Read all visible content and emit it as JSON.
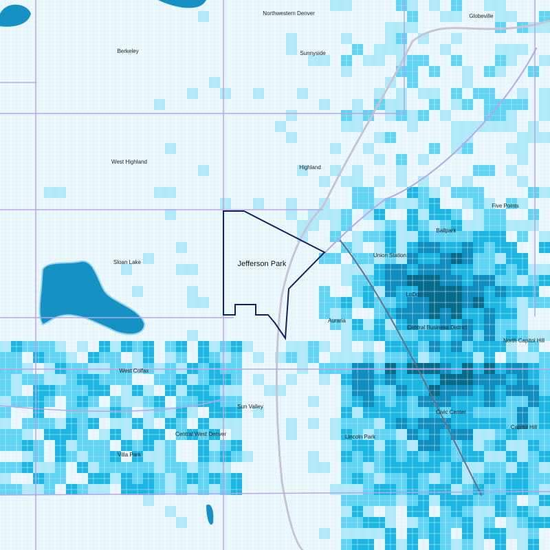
{
  "map": {
    "highlighted": "Jefferson Park",
    "labels": [
      "Northwestern Denver",
      "Globeville",
      "Berkeley",
      "Sunnyside",
      "West Highland",
      "Highland",
      "Five Points",
      "Ballpark",
      "Union Station",
      "Sloan Lake",
      "LoDo",
      "Auraria",
      "Central Business District",
      "North Capitol Hill",
      "West Colfax",
      "Sun Valley",
      "Civic Center",
      "Capitol Hill",
      "Central West Denver",
      "Lincoln Park",
      "Villa Park"
    ]
  }
}
